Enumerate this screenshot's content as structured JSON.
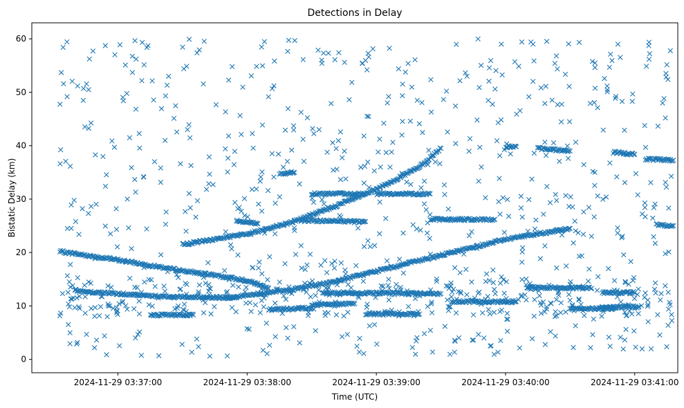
{
  "chart_data": {
    "type": "scatter",
    "title": "Detections in Delay",
    "xlabel": "Time (UTC)",
    "ylabel": "Bistatic Delay (km)",
    "x_axis_type": "datetime",
    "xlim": [
      "2024-11-29 03:36:20",
      "2024-11-29 03:41:20"
    ],
    "ylim": [
      -2.5,
      63
    ],
    "x_ticks": [
      "2024-11-29 03:37:00",
      "2024-11-29 03:38:00",
      "2024-11-29 03:39:00",
      "2024-11-29 03:40:00",
      "2024-11-29 03:41:00"
    ],
    "y_ticks": [
      0,
      10,
      20,
      30,
      40,
      50,
      60
    ],
    "marker": "x",
    "marker_color": "#1f77b4",
    "grid": false,
    "legend": "none",
    "tracks": [
      {
        "points": [
          [
            "2024-11-29 03:36:33",
            20.2
          ],
          [
            "2024-11-29 03:37:00",
            18.6
          ],
          [
            "2024-11-29 03:37:30",
            16.6
          ],
          [
            "2024-11-29 03:38:00",
            14.8
          ],
          [
            "2024-11-29 03:38:10",
            13.3
          ]
        ]
      },
      {
        "points": [
          [
            "2024-11-29 03:37:30",
            21.5
          ],
          [
            "2024-11-29 03:38:00",
            23.5
          ],
          [
            "2024-11-29 03:38:20",
            25.6
          ],
          [
            "2024-11-29 03:38:40",
            28.5
          ],
          [
            "2024-11-29 03:39:00",
            31.8
          ],
          [
            "2024-11-29 03:39:20",
            36.0
          ],
          [
            "2024-11-29 03:39:30",
            39.5
          ]
        ]
      },
      {
        "points": [
          [
            "2024-11-29 03:37:50",
            11.5
          ],
          [
            "2024-11-29 03:38:20",
            13.0
          ],
          [
            "2024-11-29 03:38:40",
            14.5
          ],
          [
            "2024-11-29 03:39:00",
            16.5
          ],
          [
            "2024-11-29 03:39:30",
            19.5
          ],
          [
            "2024-11-29 03:40:00",
            22.5
          ],
          [
            "2024-11-29 03:40:30",
            24.5
          ]
        ]
      },
      {
        "points": [
          [
            "2024-11-29 03:36:40",
            12.8
          ],
          [
            "2024-11-29 03:37:20",
            11.8
          ],
          [
            "2024-11-29 03:37:55",
            11.5
          ]
        ]
      },
      {
        "points": [
          [
            "2024-11-29 03:37:15",
            8.3
          ],
          [
            "2024-11-29 03:37:35",
            8.3
          ]
        ]
      },
      {
        "points": [
          [
            "2024-11-29 03:37:55",
            26.0
          ],
          [
            "2024-11-29 03:38:05",
            25.4
          ]
        ]
      },
      {
        "points": [
          [
            "2024-11-29 03:38:15",
            34.7
          ],
          [
            "2024-11-29 03:38:22",
            35.0
          ]
        ]
      },
      {
        "points": [
          [
            "2024-11-29 03:38:25",
            26.0
          ],
          [
            "2024-11-29 03:38:55",
            25.8
          ]
        ]
      },
      {
        "points": [
          [
            "2024-11-29 03:38:30",
            31.0
          ],
          [
            "2024-11-29 03:38:55",
            31.0
          ]
        ]
      },
      {
        "points": [
          [
            "2024-11-29 03:38:30",
            10.2
          ],
          [
            "2024-11-29 03:38:50",
            10.4
          ]
        ]
      },
      {
        "points": [
          [
            "2024-11-29 03:38:10",
            9.3
          ],
          [
            "2024-11-29 03:38:30",
            9.6
          ]
        ]
      },
      {
        "points": [
          [
            "2024-11-29 03:38:35",
            12.5
          ],
          [
            "2024-11-29 03:39:30",
            12.3
          ]
        ]
      },
      {
        "points": [
          [
            "2024-11-29 03:38:55",
            8.5
          ],
          [
            "2024-11-29 03:39:20",
            8.5
          ]
        ]
      },
      {
        "points": [
          [
            "2024-11-29 03:39:00",
            31.0
          ],
          [
            "2024-11-29 03:39:25",
            31.0
          ]
        ]
      },
      {
        "points": [
          [
            "2024-11-29 03:39:25",
            26.2
          ],
          [
            "2024-11-29 03:39:55",
            26.2
          ]
        ]
      },
      {
        "points": [
          [
            "2024-11-29 03:39:35",
            10.8
          ],
          [
            "2024-11-29 03:40:05",
            10.8
          ]
        ]
      },
      {
        "points": [
          [
            "2024-11-29 03:40:00",
            39.8
          ],
          [
            "2024-11-29 03:40:05",
            39.8
          ]
        ]
      },
      {
        "points": [
          [
            "2024-11-29 03:40:15",
            39.5
          ],
          [
            "2024-11-29 03:40:30",
            39.0
          ]
        ]
      },
      {
        "points": [
          [
            "2024-11-29 03:40:10",
            13.5
          ],
          [
            "2024-11-29 03:40:40",
            13.3
          ]
        ]
      },
      {
        "points": [
          [
            "2024-11-29 03:40:30",
            9.5
          ],
          [
            "2024-11-29 03:40:50",
            9.5
          ]
        ]
      },
      {
        "points": [
          [
            "2024-11-29 03:40:50",
            38.8
          ],
          [
            "2024-11-29 03:41:00",
            38.4
          ]
        ]
      },
      {
        "points": [
          [
            "2024-11-29 03:40:45",
            12.5
          ],
          [
            "2024-11-29 03:41:00",
            12.5
          ]
        ]
      },
      {
        "points": [
          [
            "2024-11-29 03:40:45",
            9.8
          ],
          [
            "2024-11-29 03:41:02",
            9.8
          ]
        ]
      },
      {
        "points": [
          [
            "2024-11-29 03:41:05",
            37.5
          ],
          [
            "2024-11-29 03:41:18",
            37.3
          ]
        ]
      },
      {
        "points": [
          [
            "2024-11-29 03:41:10",
            25.2
          ],
          [
            "2024-11-29 03:41:18",
            25.0
          ]
        ]
      }
    ]
  }
}
